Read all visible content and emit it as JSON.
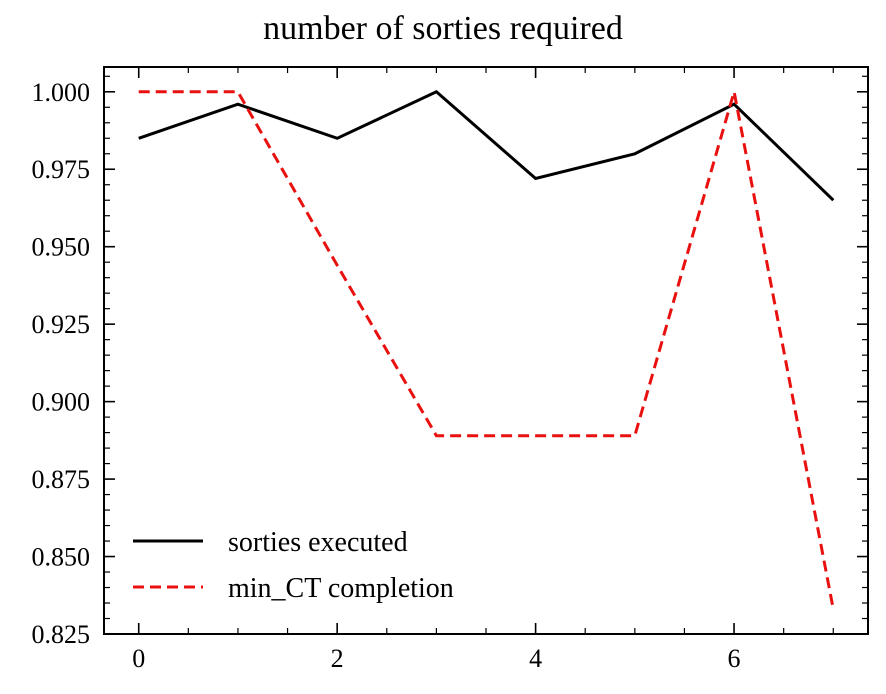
{
  "chart_data": {
    "type": "line",
    "title": "number of sorties required",
    "xlabel": "",
    "ylabel": "",
    "xlim": [
      -0.35,
      7.35
    ],
    "ylim": [
      0.825,
      1.008
    ],
    "x_ticks": [
      0,
      2,
      4,
      6
    ],
    "x_tick_labels": [
      "0",
      "2",
      "4",
      "6"
    ],
    "x_minor_step": 0.5,
    "y_ticks": [
      0.825,
      0.85,
      0.875,
      0.9,
      0.925,
      0.95,
      0.975,
      1.0
    ],
    "y_tick_labels": [
      "0.825",
      "0.850",
      "0.875",
      "0.900",
      "0.925",
      "0.950",
      "0.975",
      "1.000"
    ],
    "y_minor_step": 0.005,
    "grid": false,
    "legend_position": "lower-left",
    "x": [
      0,
      1,
      2,
      3,
      4,
      5,
      6,
      7
    ],
    "series": [
      {
        "name": "sorties executed",
        "values": [
          0.985,
          0.996,
          0.985,
          1.0,
          0.972,
          0.98,
          0.996,
          0.965
        ],
        "color": "#000000",
        "style": "solid"
      },
      {
        "name": "min_CT completion",
        "values": [
          1.0,
          1.0,
          0.944,
          0.889,
          0.889,
          0.889,
          1.0,
          0.833
        ],
        "color": "#e8110f",
        "style": "dashed"
      }
    ]
  }
}
